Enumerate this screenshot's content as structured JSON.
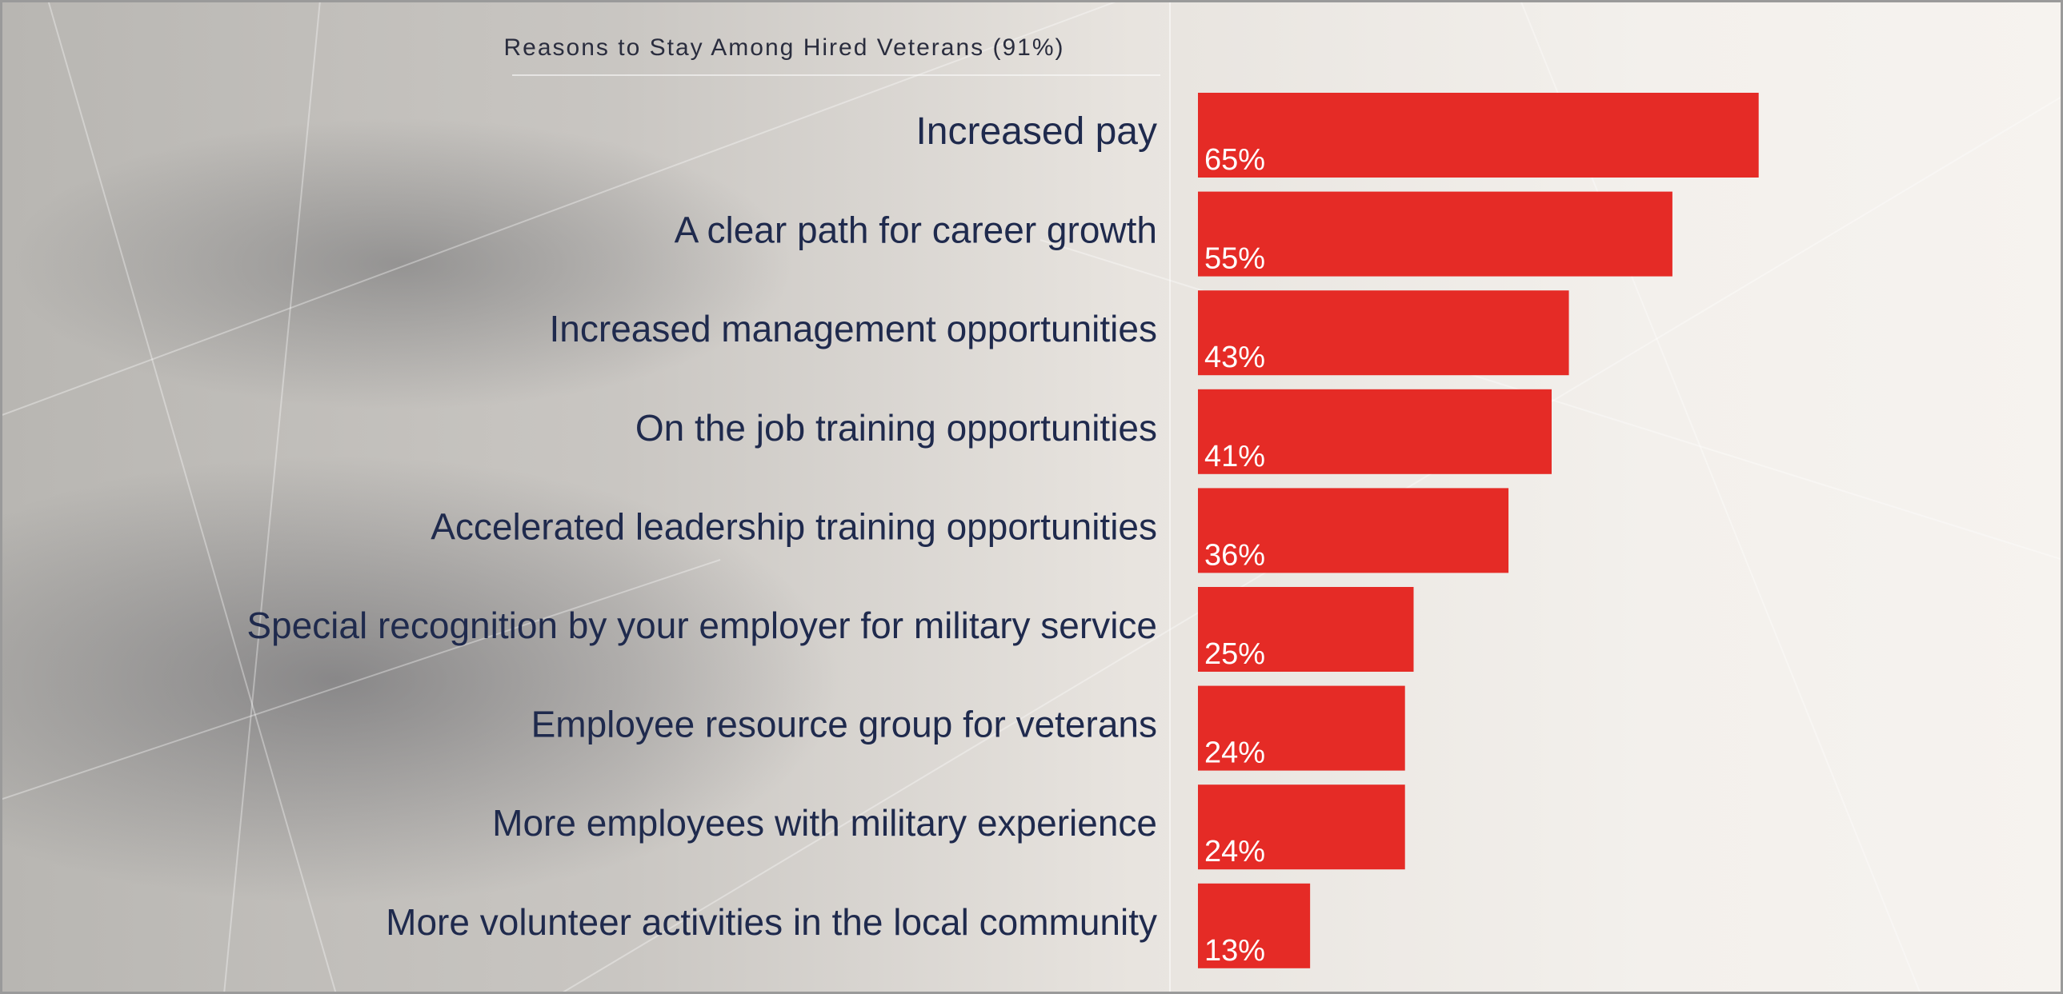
{
  "chart_data": {
    "type": "bar",
    "orientation": "horizontal",
    "title": "Reasons to Stay Among Hired Veterans (91%)",
    "categories": [
      "Increased pay",
      "A clear path for career growth",
      "Increased management opportunities",
      "On the job training opportunities",
      "Accelerated leadership training opportunities",
      "Special recognition by your employer for military service",
      "Employee resource group for veterans",
      "More employees with military experience",
      "More volunteer activities in the local community"
    ],
    "values": [
      65,
      55,
      43,
      41,
      36,
      25,
      24,
      24,
      13
    ],
    "value_labels": [
      "65%",
      "55%",
      "43%",
      "41%",
      "36%",
      "25%",
      "24%",
      "24%",
      "13%"
    ],
    "xlim": [
      0,
      100
    ],
    "grid": false,
    "legend": "none",
    "colors": {
      "bar": "#e52b26",
      "category_text": "#1f2a4d",
      "value_text": "#ffffff"
    }
  }
}
